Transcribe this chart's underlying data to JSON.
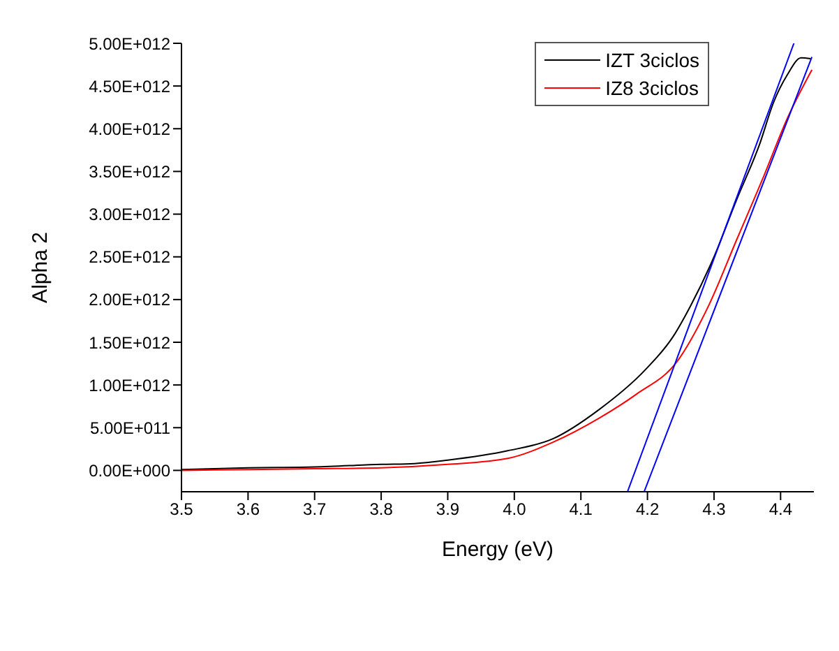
{
  "chart_data": {
    "type": "line",
    "xlabel": "Energy (eV)",
    "ylabel": "Alpha 2",
    "xlim": [
      3.5,
      4.45
    ],
    "xticks": [
      3.5,
      3.6,
      3.7,
      3.8,
      3.9,
      {
        "value": 4.0,
        "label": "4.0"
      },
      4.1,
      4.2,
      4.3,
      4.4
    ],
    "ylim": [
      -250000000000,
      5000000000000
    ],
    "yticks": [
      {
        "value": 0,
        "label": "0.00E+000"
      },
      {
        "value": 500000000000,
        "label": "5.00E+011"
      },
      {
        "value": 1000000000000,
        "label": "1.00E+012"
      },
      {
        "value": 1500000000000,
        "label": "1.50E+012"
      },
      {
        "value": 2000000000000,
        "label": "2.00E+012"
      },
      {
        "value": 2500000000000,
        "label": "2.50E+012"
      },
      {
        "value": 3000000000000,
        "label": "3.00E+012"
      },
      {
        "value": 3500000000000,
        "label": "3.50E+012"
      },
      {
        "value": 4000000000000,
        "label": "4.00E+012"
      },
      {
        "value": 4500000000000,
        "label": "4.50E+012"
      },
      {
        "value": 5000000000000,
        "label": "5.00E+012"
      }
    ],
    "grid": false,
    "legend": "top right",
    "marker": "none",
    "series": [
      {
        "name": "IZT 3ciclos",
        "color": "#000000",
        "x": [
          3.5,
          3.6,
          3.7,
          3.8,
          3.85,
          3.9,
          3.99,
          4.058,
          4.127,
          4.197,
          4.238,
          4.265,
          4.3,
          4.334,
          4.369,
          4.389,
          4.41,
          4.431,
          4.445
        ],
        "values": [
          10000000000,
          30000000000,
          40000000000,
          70000000000,
          80000000000,
          120000000000,
          230000000000,
          370000000000,
          710000000000,
          1180000000000,
          1560000000000,
          1930000000000,
          2500000000000,
          3170000000000,
          3830000000000,
          4300000000000,
          4630000000000,
          4830000000000,
          4820000000000
        ]
      },
      {
        "name": "IZ8 3ciclos",
        "color": "#ff0000",
        "x": [
          3.5,
          3.6,
          3.7,
          3.8,
          3.9,
          3.99,
          4.058,
          4.127,
          4.183,
          4.245,
          4.292,
          4.334,
          4.375,
          4.41,
          4.447
        ],
        "values": [
          0,
          10000000000,
          20000000000,
          30000000000,
          70000000000,
          140000000000,
          330000000000,
          610000000000,
          890000000000,
          1280000000000,
          1930000000000,
          2700000000000,
          3450000000000,
          4120000000000,
          4690000000000
        ]
      },
      {
        "type": "line",
        "color": "#0000ff",
        "x": [
          4.17,
          4.42
        ],
        "values": [
          -250000000000,
          5000000000000
        ]
      },
      {
        "type": "line",
        "color": "#0000ff",
        "x": [
          4.195,
          4.447
        ],
        "values": [
          -250000000000,
          4840000000000
        ]
      }
    ]
  }
}
